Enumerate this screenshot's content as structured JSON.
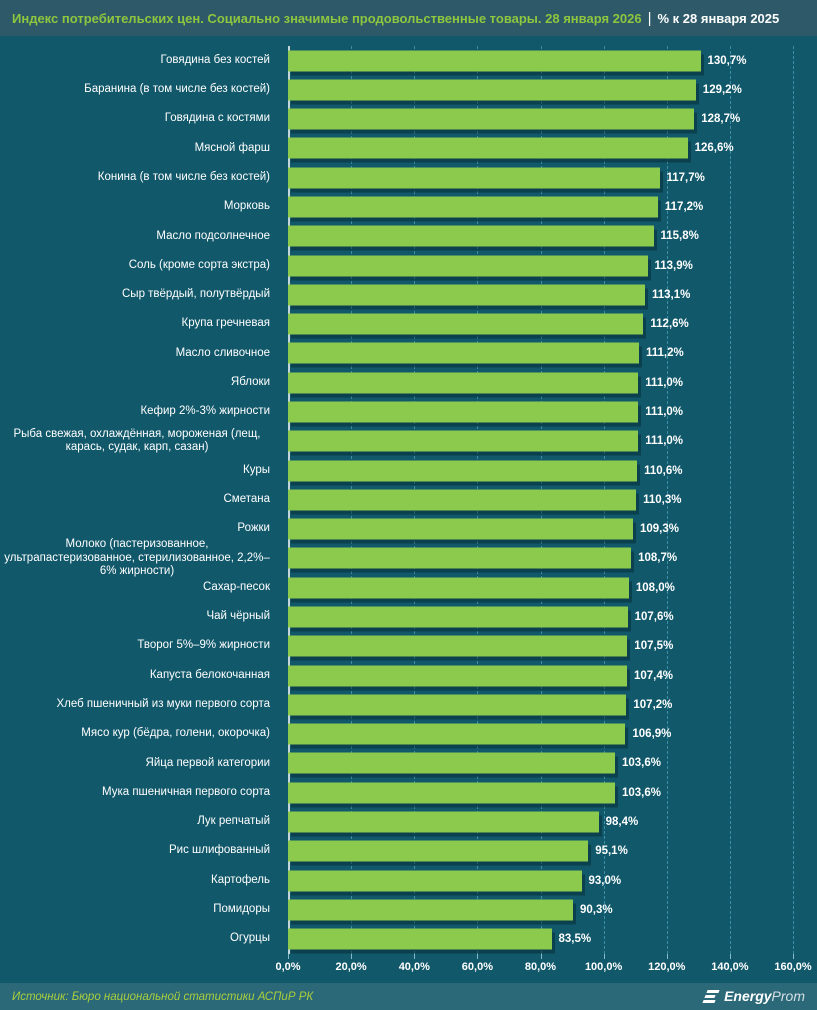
{
  "header": {
    "title_green": "Индекс потребительских цен. Социально значимые продовольственные товары. 28 января 2026",
    "separator": "|",
    "title_white": "% к 28 января 2025"
  },
  "colors": {
    "header_bg": "#2d5968",
    "body_bg": "#11586a",
    "footer_bg": "#2b6878",
    "bar": "#8cca4d",
    "title_green": "#8ec63f",
    "source_green": "#a9cf3d",
    "text_white": "#ffffff",
    "gridline": "#60bed8"
  },
  "chart_data": {
    "type": "bar",
    "orientation": "horizontal",
    "title": "Индекс потребительских цен. Социально значимые продовольственные товары. 28 января 2026 | % к 28 января 2025",
    "xlabel": "",
    "ylabel": "",
    "xlim": [
      0,
      160
    ],
    "grid": "dashed-vertical",
    "unit": "%",
    "xticks": [
      {
        "value": 0,
        "label": "0,0%"
      },
      {
        "value": 20,
        "label": "20,0%"
      },
      {
        "value": 40,
        "label": "40,0%"
      },
      {
        "value": 60,
        "label": "60,0%"
      },
      {
        "value": 80,
        "label": "80,0%"
      },
      {
        "value": 100,
        "label": "100,0%"
      },
      {
        "value": 120,
        "label": "120,0%"
      },
      {
        "value": 140,
        "label": "140,0%"
      },
      {
        "value": 160,
        "label": "160,0%"
      }
    ],
    "rows": [
      {
        "label": "Говядина без костей",
        "value": 130.7,
        "display": "130,7%"
      },
      {
        "label": "Баранина (в том числе без костей)",
        "value": 129.2,
        "display": "129,2%"
      },
      {
        "label": "Говядина с костями",
        "value": 128.7,
        "display": "128,7%"
      },
      {
        "label": "Мясной фарш",
        "value": 126.6,
        "display": "126,6%"
      },
      {
        "label": "Конина (в том числе без костей)",
        "value": 117.7,
        "display": "117,7%"
      },
      {
        "label": "Морковь",
        "value": 117.2,
        "display": "117,2%"
      },
      {
        "label": "Масло подсолнечное",
        "value": 115.8,
        "display": "115,8%"
      },
      {
        "label": "Соль (кроме сорта экстра)",
        "value": 113.9,
        "display": "113,9%"
      },
      {
        "label": "Сыр твёрдый, полутвёрдый",
        "value": 113.1,
        "display": "113,1%"
      },
      {
        "label": "Крупа гречневая",
        "value": 112.6,
        "display": "112,6%"
      },
      {
        "label": "Масло сливочное",
        "value": 111.2,
        "display": "111,2%"
      },
      {
        "label": "Яблоки",
        "value": 111.0,
        "display": "111,0%"
      },
      {
        "label": "Кефир 2%-3% жирности",
        "value": 111.0,
        "display": "111,0%"
      },
      {
        "label": "Рыба свежая, охлаждённая, мороженая (лещ, карась, судак, карп, сазан)",
        "value": 111.0,
        "display": "111,0%"
      },
      {
        "label": "Куры",
        "value": 110.6,
        "display": "110,6%"
      },
      {
        "label": "Сметана",
        "value": 110.3,
        "display": "110,3%"
      },
      {
        "label": "Рожки",
        "value": 109.3,
        "display": "109,3%"
      },
      {
        "label": "Молоко (пастеризованное, ультрапастеризованное, стерилизованное, 2,2%–6% жирности)",
        "value": 108.7,
        "display": "108,7%"
      },
      {
        "label": "Сахар-песок",
        "value": 108.0,
        "display": "108,0%"
      },
      {
        "label": "Чай чёрный",
        "value": 107.6,
        "display": "107,6%"
      },
      {
        "label": "Творог 5%–9% жирности",
        "value": 107.5,
        "display": "107,5%"
      },
      {
        "label": "Капуста белокочанная",
        "value": 107.4,
        "display": "107,4%"
      },
      {
        "label": "Хлеб пшеничный из муки первого сорта",
        "value": 107.2,
        "display": "107,2%"
      },
      {
        "label": "Мясо кур (бёдра, голени, окорочка)",
        "value": 106.9,
        "display": "106,9%"
      },
      {
        "label": "Яйца первой категории",
        "value": 103.6,
        "display": "103,6%"
      },
      {
        "label": "Мука пшеничная первого сорта",
        "value": 103.6,
        "display": "103,6%"
      },
      {
        "label": "Лук репчатый",
        "value": 98.4,
        "display": "98,4%"
      },
      {
        "label": "Рис шлифованный",
        "value": 95.1,
        "display": "95,1%"
      },
      {
        "label": "Картофель",
        "value": 93.0,
        "display": "93,0%"
      },
      {
        "label": "Помидоры",
        "value": 90.3,
        "display": "90,3%"
      },
      {
        "label": "Огурцы",
        "value": 83.5,
        "display": "83,5%"
      }
    ]
  },
  "footer": {
    "source": "Источник: Бюро национальной статистики АСПиР РК",
    "logo_bold": "Energy",
    "logo_light": "Prom"
  }
}
